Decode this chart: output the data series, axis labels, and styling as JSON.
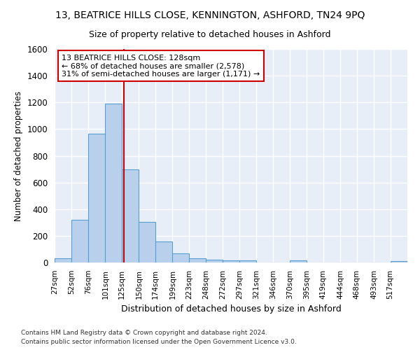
{
  "title": "13, BEATRICE HILLS CLOSE, KENNINGTON, ASHFORD, TN24 9PQ",
  "subtitle": "Size of property relative to detached houses in Ashford",
  "xlabel": "Distribution of detached houses by size in Ashford",
  "ylabel": "Number of detached properties",
  "footnote1": "Contains HM Land Registry data © Crown copyright and database right 2024.",
  "footnote2": "Contains public sector information licensed under the Open Government Licence v3.0.",
  "annotation_line1": "13 BEATRICE HILLS CLOSE: 128sqm",
  "annotation_line2": "← 68% of detached houses are smaller (2,578)",
  "annotation_line3": "31% of semi-detached houses are larger (1,171) →",
  "property_size": 128,
  "bar_color": "#b8d0eb",
  "bar_edge_color": "#5a9fd4",
  "marker_color": "#cc0000",
  "bins": [
    27,
    52,
    76,
    101,
    125,
    150,
    174,
    199,
    223,
    248,
    272,
    297,
    321,
    346,
    370,
    395,
    419,
    444,
    468,
    493,
    517,
    542
  ],
  "counts": [
    30,
    320,
    965,
    1190,
    700,
    305,
    155,
    70,
    30,
    20,
    15,
    15,
    0,
    0,
    15,
    0,
    0,
    0,
    0,
    0,
    10
  ],
  "ylim": [
    0,
    1600
  ],
  "yticks": [
    0,
    200,
    400,
    600,
    800,
    1000,
    1200,
    1400,
    1600
  ],
  "bg_color": "#e8eef8",
  "grid_color": "#ffffff",
  "tick_labels": [
    "27sqm",
    "52sqm",
    "76sqm",
    "101sqm",
    "125sqm",
    "150sqm",
    "174sqm",
    "199sqm",
    "223sqm",
    "248sqm",
    "272sqm",
    "297sqm",
    "321sqm",
    "346sqm",
    "370sqm",
    "395sqm",
    "419sqm",
    "444sqm",
    "468sqm",
    "493sqm",
    "517sqm"
  ]
}
